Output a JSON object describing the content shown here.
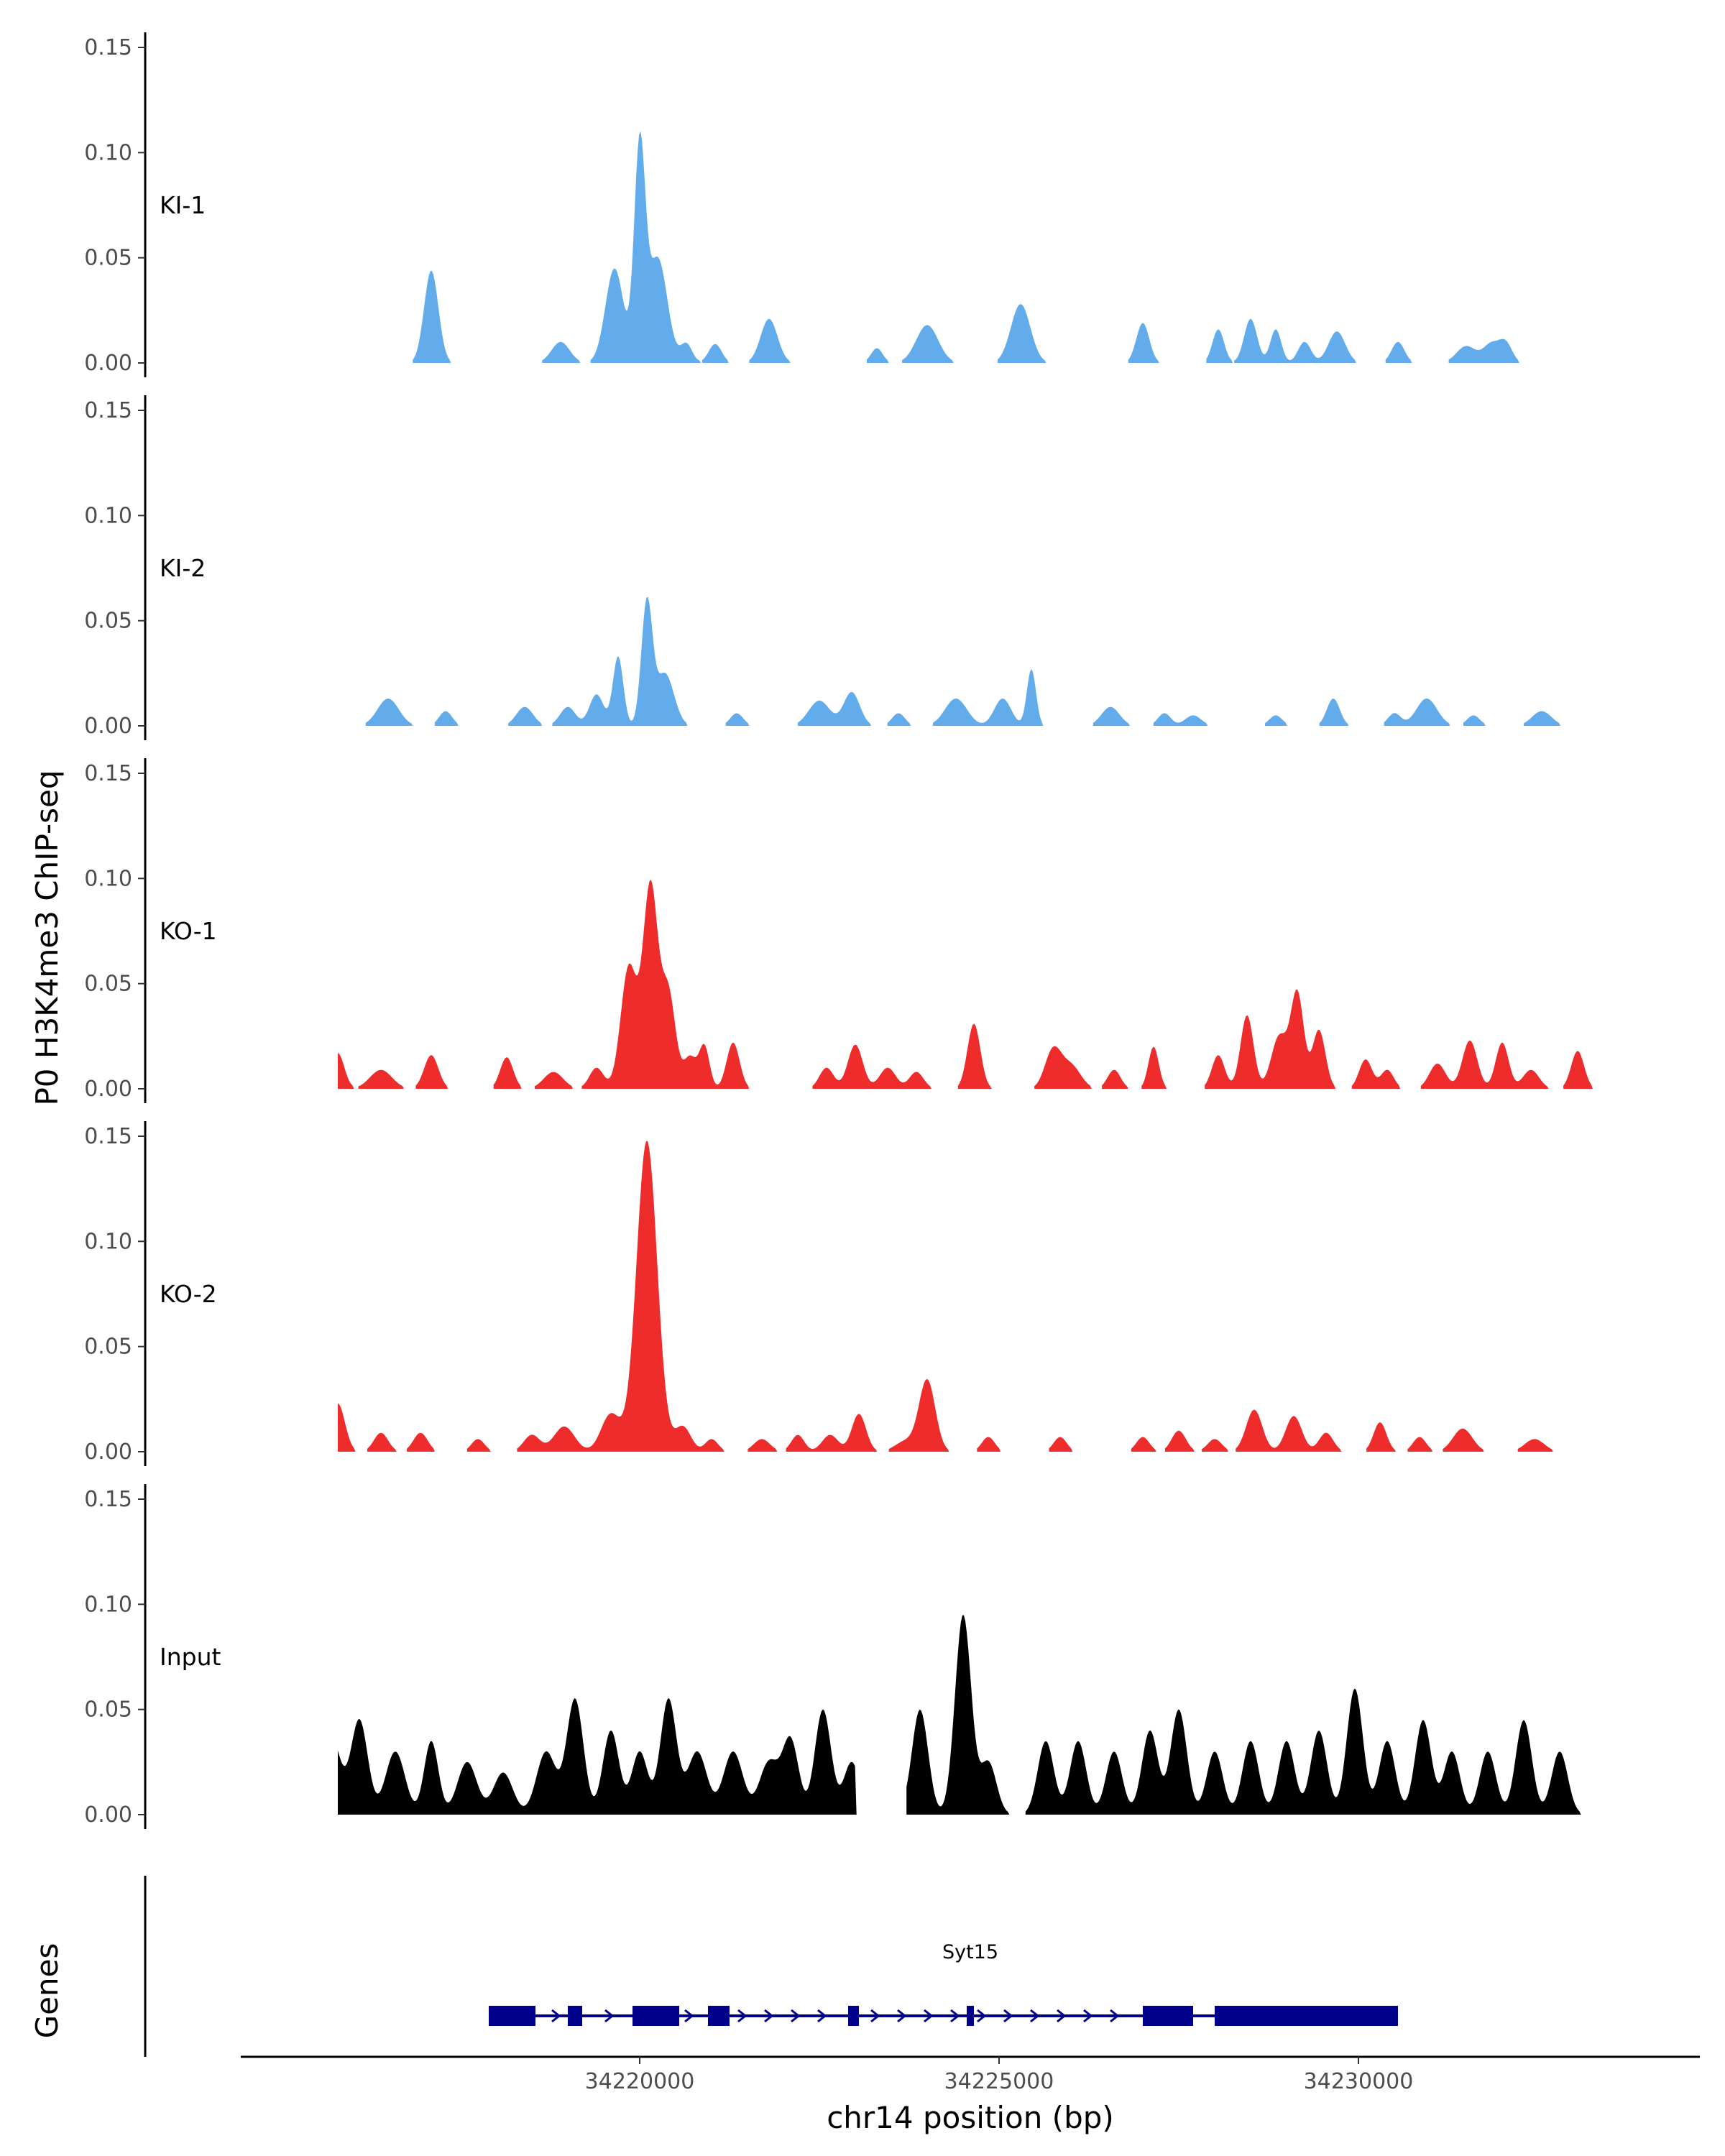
{
  "chart_data": {
    "type": "area",
    "title": "",
    "ylabel": "P0 H3K4me3 ChIP-seq",
    "xlabel": "chr14 position (bp)",
    "xlim": [
      34214500,
      34234700
    ],
    "ylim": [
      0,
      0.15
    ],
    "x_ticks": [
      {
        "value": 34220000,
        "label": "34220000"
      },
      {
        "value": 34225000,
        "label": "34225000"
      },
      {
        "value": 34230000,
        "label": "34230000"
      }
    ],
    "y_ticks": [
      {
        "value": 0.0,
        "label": "0.00"
      },
      {
        "value": 0.05,
        "label": "0.05"
      },
      {
        "value": 0.1,
        "label": "0.10"
      },
      {
        "value": 0.15,
        "label": "0.15"
      }
    ],
    "colors": {
      "KI": "#63acec",
      "KO": "#ee2c2c",
      "Input": "#000000",
      "gene": "#00008b"
    },
    "tracks": [
      {
        "name": "KI-1",
        "color": "#63acec",
        "peaks": [
          [
            34217100,
            0.044,
            220
          ],
          [
            34218900,
            0.01,
            280
          ],
          [
            34219650,
            0.045,
            280
          ],
          [
            34220000,
            0.1,
            170
          ],
          [
            34220250,
            0.05,
            300
          ],
          [
            34220650,
            0.009,
            180
          ],
          [
            34221050,
            0.009,
            200
          ],
          [
            34221800,
            0.021,
            260
          ],
          [
            34223300,
            0.007,
            180
          ],
          [
            34224000,
            0.018,
            340
          ],
          [
            34225300,
            0.028,
            300
          ],
          [
            34227000,
            0.019,
            200
          ],
          [
            34228050,
            0.016,
            180
          ],
          [
            34228500,
            0.021,
            200
          ],
          [
            34228850,
            0.016,
            170
          ],
          [
            34229250,
            0.01,
            200
          ],
          [
            34229700,
            0.015,
            260
          ],
          [
            34230550,
            0.01,
            200
          ],
          [
            34231500,
            0.008,
            300
          ],
          [
            34231850,
            0.009,
            250
          ],
          [
            34232050,
            0.009,
            200
          ]
        ]
      },
      {
        "name": "KI-2",
        "color": "#63acec",
        "peaks": [
          [
            34216500,
            0.013,
            330
          ],
          [
            34217300,
            0.007,
            200
          ],
          [
            34218400,
            0.009,
            260
          ],
          [
            34219000,
            0.009,
            240
          ],
          [
            34219400,
            0.015,
            220
          ],
          [
            34219700,
            0.033,
            160
          ],
          [
            34220100,
            0.058,
            170
          ],
          [
            34220350,
            0.025,
            280
          ],
          [
            34221350,
            0.006,
            200
          ],
          [
            34222500,
            0.012,
            330
          ],
          [
            34222950,
            0.016,
            250
          ],
          [
            34223600,
            0.006,
            200
          ],
          [
            34224400,
            0.013,
            340
          ],
          [
            34225050,
            0.013,
            260
          ],
          [
            34225450,
            0.027,
            140
          ],
          [
            34226550,
            0.009,
            280
          ],
          [
            34227300,
            0.006,
            200
          ],
          [
            34227700,
            0.005,
            250
          ],
          [
            34228850,
            0.005,
            200
          ],
          [
            34229650,
            0.013,
            200
          ],
          [
            34230500,
            0.006,
            200
          ],
          [
            34230950,
            0.013,
            320
          ],
          [
            34231600,
            0.005,
            200
          ],
          [
            34232550,
            0.007,
            300
          ]
        ]
      },
      {
        "name": "KO-1",
        "color": "#ee2c2c",
        "peaks": [
          [
            34215800,
            0.017,
            200
          ],
          [
            34216400,
            0.009,
            340
          ],
          [
            34217100,
            0.016,
            220
          ],
          [
            34218150,
            0.015,
            200
          ],
          [
            34218800,
            0.008,
            300
          ],
          [
            34219400,
            0.01,
            220
          ],
          [
            34219850,
            0.058,
            250
          ],
          [
            34220150,
            0.096,
            230
          ],
          [
            34220400,
            0.045,
            220
          ],
          [
            34220700,
            0.015,
            200
          ],
          [
            34220900,
            0.02,
            160
          ],
          [
            34221300,
            0.022,
            200
          ],
          [
            34222600,
            0.01,
            220
          ],
          [
            34223000,
            0.021,
            230
          ],
          [
            34223450,
            0.01,
            250
          ],
          [
            34223850,
            0.008,
            220
          ],
          [
            34224650,
            0.031,
            200
          ],
          [
            34225750,
            0.018,
            250
          ],
          [
            34226000,
            0.011,
            300
          ],
          [
            34226600,
            0.009,
            200
          ],
          [
            34227150,
            0.02,
            160
          ],
          [
            34228050,
            0.016,
            200
          ],
          [
            34228450,
            0.035,
            200
          ],
          [
            34228900,
            0.025,
            250
          ],
          [
            34229150,
            0.045,
            200
          ],
          [
            34229450,
            0.028,
            200
          ],
          [
            34230100,
            0.014,
            200
          ],
          [
            34230400,
            0.009,
            200
          ],
          [
            34231100,
            0.012,
            250
          ],
          [
            34231550,
            0.023,
            230
          ],
          [
            34232000,
            0.022,
            200
          ],
          [
            34232400,
            0.009,
            250
          ],
          [
            34233050,
            0.018,
            200
          ]
        ]
      },
      {
        "name": "KO-2",
        "color": "#ee2c2c",
        "peaks": [
          [
            34215800,
            0.023,
            220
          ],
          [
            34216400,
            0.009,
            220
          ],
          [
            34216950,
            0.009,
            220
          ],
          [
            34217750,
            0.006,
            200
          ],
          [
            34218500,
            0.008,
            250
          ],
          [
            34218950,
            0.012,
            320
          ],
          [
            34219600,
            0.018,
            300
          ],
          [
            34220100,
            0.148,
            320
          ],
          [
            34220600,
            0.012,
            250
          ],
          [
            34221000,
            0.006,
            200
          ],
          [
            34221700,
            0.006,
            250
          ],
          [
            34222200,
            0.008,
            200
          ],
          [
            34222650,
            0.008,
            250
          ],
          [
            34223050,
            0.018,
            220
          ],
          [
            34223700,
            0.005,
            320
          ],
          [
            34224000,
            0.034,
            250
          ],
          [
            34224850,
            0.007,
            200
          ],
          [
            34225850,
            0.007,
            200
          ],
          [
            34227000,
            0.007,
            200
          ],
          [
            34227500,
            0.01,
            220
          ],
          [
            34228000,
            0.006,
            220
          ],
          [
            34228550,
            0.02,
            250
          ],
          [
            34229100,
            0.017,
            250
          ],
          [
            34229550,
            0.009,
            220
          ],
          [
            34230300,
            0.014,
            200
          ],
          [
            34230850,
            0.007,
            200
          ],
          [
            34231450,
            0.011,
            300
          ],
          [
            34232450,
            0.006,
            300
          ]
        ]
      },
      {
        "name": "Input",
        "color": "#000000",
        "peaks": [
          [
            34215700,
            0.038,
            300
          ],
          [
            34216100,
            0.045,
            260
          ],
          [
            34216600,
            0.03,
            300
          ],
          [
            34217100,
            0.035,
            220
          ],
          [
            34217600,
            0.025,
            300
          ],
          [
            34218100,
            0.02,
            300
          ],
          [
            34218700,
            0.03,
            300
          ],
          [
            34219100,
            0.055,
            260
          ],
          [
            34219600,
            0.04,
            250
          ],
          [
            34220000,
            0.03,
            250
          ],
          [
            34220400,
            0.055,
            250
          ],
          [
            34220800,
            0.03,
            300
          ],
          [
            34221300,
            0.03,
            300
          ],
          [
            34221800,
            0.025,
            300
          ],
          [
            34222100,
            0.035,
            250
          ],
          [
            34222550,
            0.05,
            250
          ],
          [
            34222950,
            0.025,
            250
          ],
          [
            34223400,
            0.035,
            250
          ],
          [
            34223900,
            0.05,
            250
          ],
          [
            34224500,
            0.095,
            250
          ],
          [
            34224850,
            0.025,
            250
          ],
          [
            34225650,
            0.035,
            250
          ],
          [
            34226100,
            0.035,
            250
          ],
          [
            34226600,
            0.03,
            250
          ],
          [
            34227100,
            0.04,
            250
          ],
          [
            34227500,
            0.05,
            250
          ],
          [
            34228000,
            0.03,
            250
          ],
          [
            34228500,
            0.035,
            250
          ],
          [
            34229000,
            0.035,
            250
          ],
          [
            34229450,
            0.04,
            250
          ],
          [
            34229950,
            0.06,
            250
          ],
          [
            34230400,
            0.035,
            250
          ],
          [
            34230900,
            0.045,
            250
          ],
          [
            34231300,
            0.03,
            250
          ],
          [
            34231800,
            0.03,
            250
          ],
          [
            34232300,
            0.045,
            250
          ],
          [
            34232800,
            0.03,
            250
          ]
        ],
        "gap": [
          34223000,
          34223700
        ]
      }
    ],
    "gene_track": {
      "ylabel": "Genes",
      "gene": "Syt15",
      "start": 34217900,
      "end": 34230550,
      "exons": [
        [
          34217900,
          34218550
        ],
        [
          34219000,
          34219200
        ],
        [
          34219900,
          34220550
        ],
        [
          34220950,
          34221250
        ],
        [
          34222900,
          34223050
        ],
        [
          34224550,
          34224650
        ],
        [
          34227000,
          34227700
        ],
        [
          34228000,
          34230550
        ]
      ]
    }
  }
}
